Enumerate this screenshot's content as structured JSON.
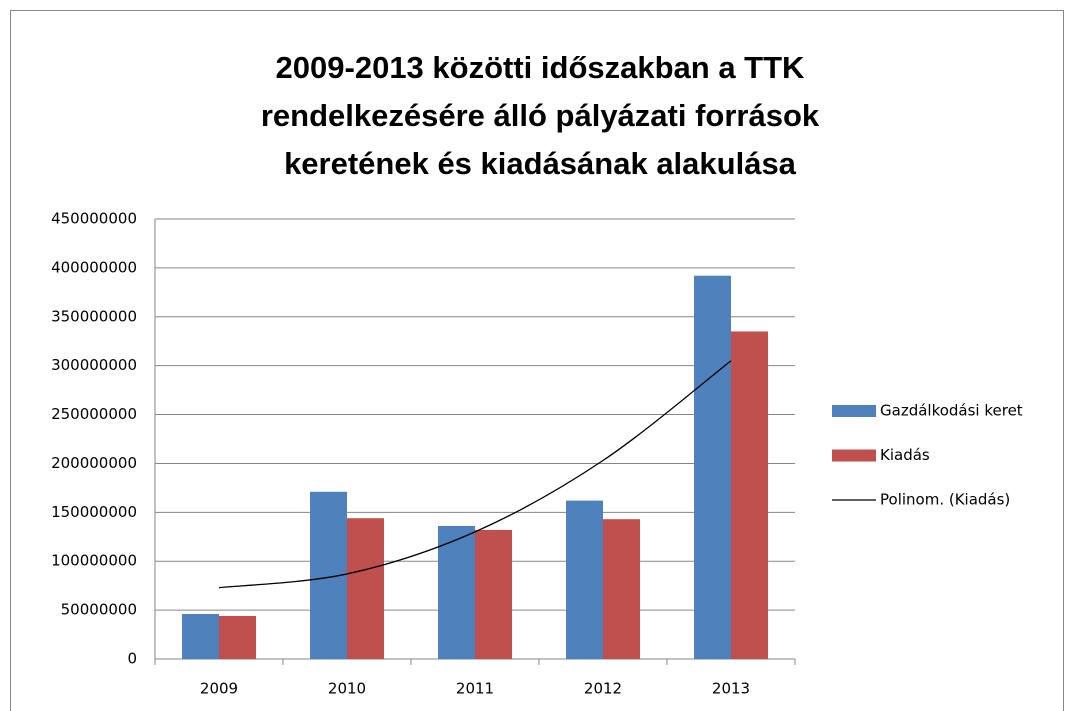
{
  "chart_data": {
    "type": "bar",
    "title": [
      "2009-2013  közötti időszakban a TTK",
      "rendelkezésére álló pályázati források",
      "keretének és kiadásának alakulása"
    ],
    "categories": [
      "2009",
      "2010",
      "2011",
      "2012",
      "2013"
    ],
    "series": [
      {
        "name": "Gazdálkodási keret",
        "color": "#4f81bd",
        "values": [
          46000000,
          171000000,
          136000000,
          162000000,
          392000000
        ]
      },
      {
        "name": "Kiadás",
        "color": "#c0504d",
        "values": [
          44000000,
          144000000,
          132000000,
          143000000,
          335000000
        ]
      },
      {
        "name": "Polinom. (Kiadás)",
        "color": "#000000",
        "type": "line",
        "values": [
          73000000,
          87000000,
          130000000,
          203000000,
          305000000
        ]
      }
    ],
    "ylim": [
      0,
      450000000
    ],
    "yticks": [
      0,
      50000000,
      100000000,
      150000000,
      200000000,
      250000000,
      300000000,
      350000000,
      400000000,
      450000000
    ],
    "grid": true,
    "legend": "right"
  }
}
